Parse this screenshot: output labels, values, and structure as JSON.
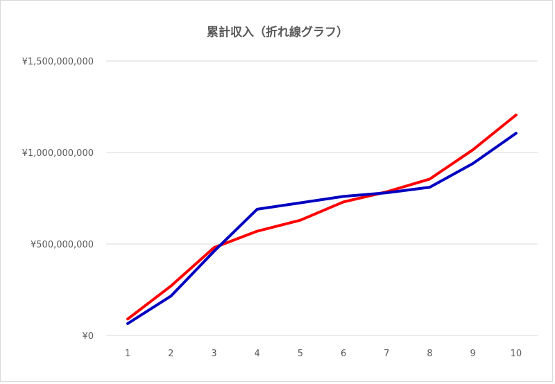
{
  "chart_data": {
    "type": "line",
    "title": "累計収入（折れ線グラフ）",
    "categories": [
      "1",
      "2",
      "3",
      "4",
      "5",
      "6",
      "7",
      "8",
      "9",
      "10"
    ],
    "series": [
      {
        "color": "#ff0000",
        "values": [
          90000000,
          270000000,
          480000000,
          570000000,
          630000000,
          730000000,
          785000000,
          855000000,
          1015000000,
          1205000000
        ]
      },
      {
        "color": "#0000c0",
        "values": [
          65000000,
          215000000,
          460000000,
          690000000,
          725000000,
          760000000,
          780000000,
          810000000,
          940000000,
          1105000000
        ]
      }
    ],
    "ylim": [
      0,
      1500000000
    ],
    "yticks": [
      0,
      500000000,
      1000000000,
      1500000000
    ],
    "ytick_labels": [
      "¥0",
      "¥500,000,000",
      "¥1,000,000,000",
      "¥1,500,000,000"
    ],
    "grid": true,
    "xlabel": "",
    "ylabel": ""
  }
}
